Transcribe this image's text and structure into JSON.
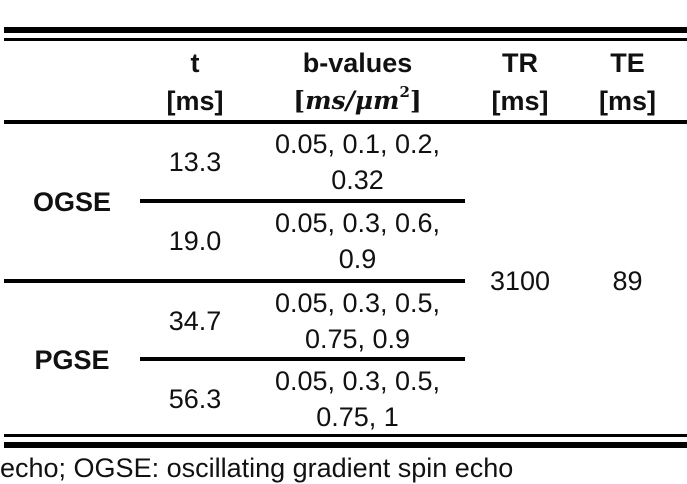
{
  "table": {
    "headers": {
      "group": "",
      "t_line1": "t",
      "t_line2": "[ms]",
      "b_line1": "b-values",
      "b_unit_open": "[",
      "b_unit_math": "ms/μm",
      "b_unit_exp": "2",
      "b_unit_close": "]",
      "tr_line1": "TR",
      "tr_line2": "[ms]",
      "te_line1": "TE",
      "te_line2": "[ms]"
    },
    "groups": [
      {
        "label": "OGSE",
        "rows": [
          {
            "t": "13.3",
            "b_line1": "0.05, 0.1, 0.2,",
            "b_line2": "0.32"
          },
          {
            "t": "19.0",
            "b_line1": "0.05, 0.3, 0.6,",
            "b_line2": "0.9"
          }
        ]
      },
      {
        "label": "PGSE",
        "rows": [
          {
            "t": "34.7",
            "b_line1": "0.05, 0.3, 0.5,",
            "b_line2": "0.75, 0.9"
          },
          {
            "t": "56.3",
            "b_line1": "0.05, 0.3, 0.5,",
            "b_line2": "0.75, 1"
          }
        ]
      }
    ],
    "tr": "3100",
    "te": "89"
  },
  "footnote": "echo; OGSE: oscillating gradient spin echo"
}
